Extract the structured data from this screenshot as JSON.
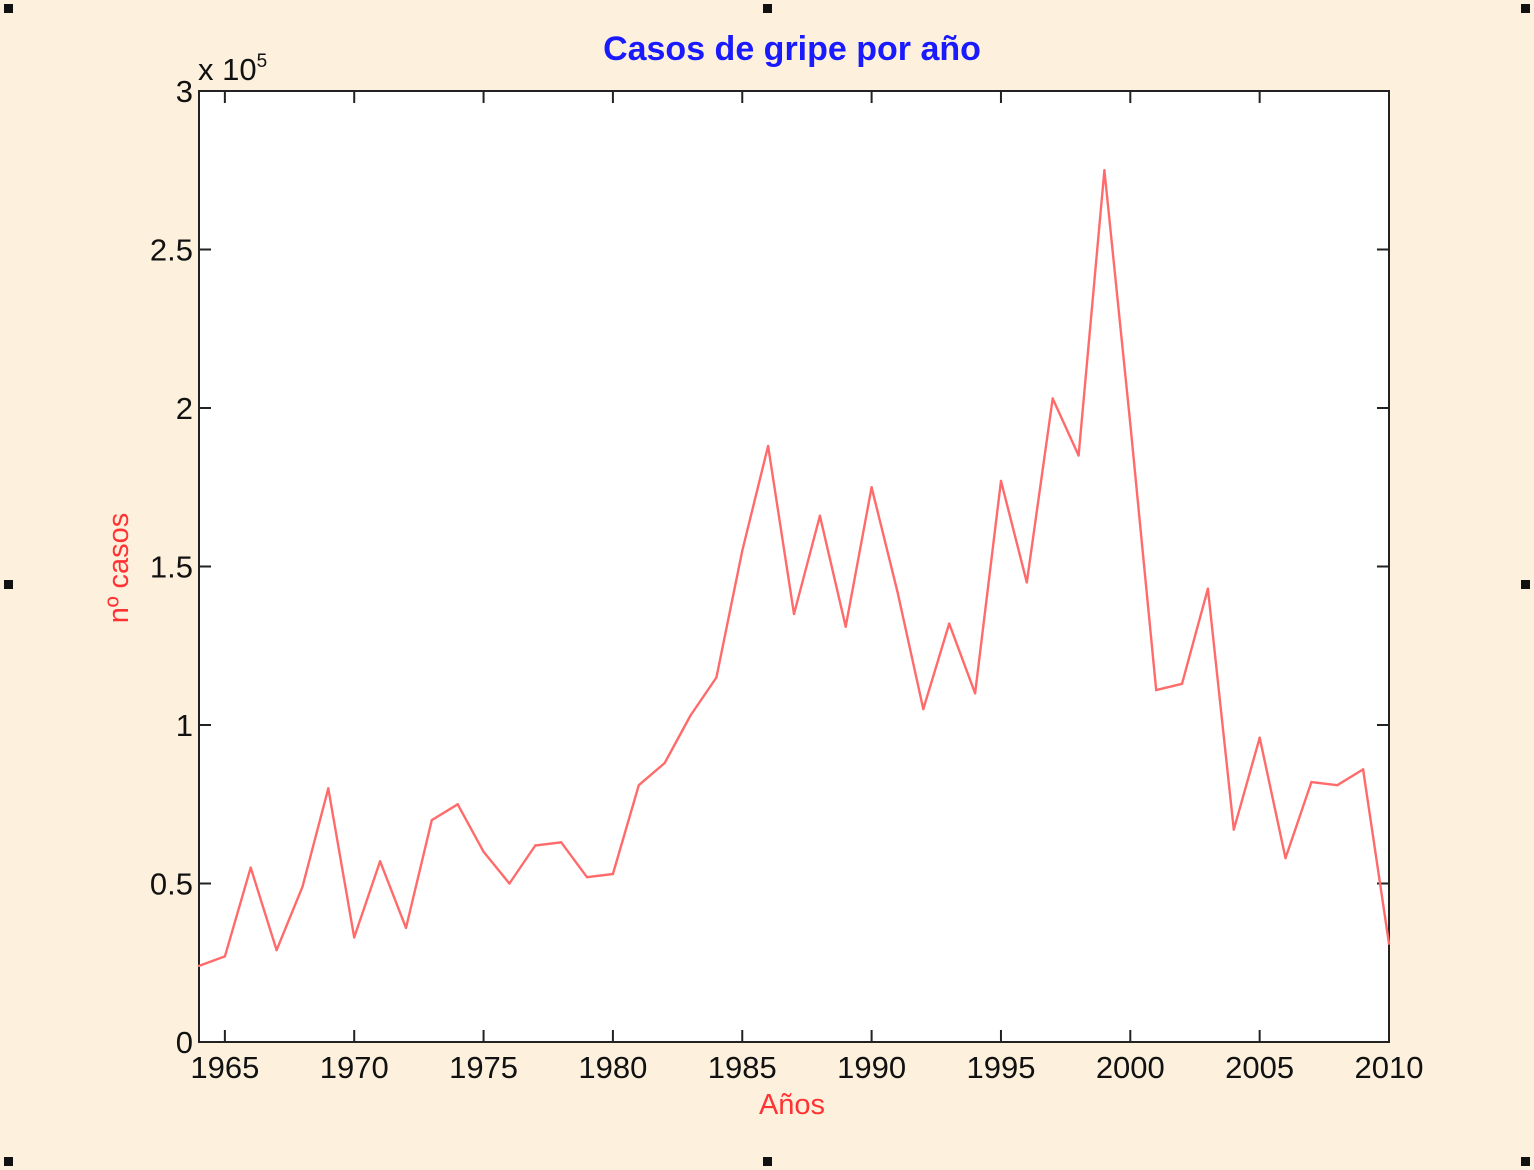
{
  "chart_data": {
    "type": "line",
    "title": "Casos de gripe por año",
    "xlabel": "Años",
    "ylabel": "nº casos",
    "y_multiplier_label": "x 10",
    "y_multiplier_exponent": "5",
    "xlim": [
      1964,
      2010
    ],
    "ylim": [
      0,
      3
    ],
    "x_ticks": [
      "1965",
      "1970",
      "1975",
      "1980",
      "1985",
      "1990",
      "1995",
      "2000",
      "2005",
      "2010"
    ],
    "y_ticks": [
      "0",
      "0.5",
      "1",
      "1.5",
      "2",
      "2.5",
      "3"
    ],
    "grid": false,
    "series": [
      {
        "color": "#ff6b6b",
        "x": [
          1964,
          1965,
          1966,
          1967,
          1968,
          1969,
          1970,
          1971,
          1972,
          1973,
          1974,
          1975,
          1976,
          1977,
          1978,
          1979,
          1980,
          1981,
          1982,
          1983,
          1984,
          1985,
          1986,
          1987,
          1988,
          1989,
          1990,
          1991,
          1992,
          1993,
          1994,
          1995,
          1996,
          1997,
          1998,
          1999,
          2000,
          2001,
          2002,
          2003,
          2004,
          2005,
          2006,
          2007,
          2008,
          2009,
          2010
        ],
        "values": [
          0.24,
          0.27,
          0.55,
          0.29,
          0.49,
          0.8,
          0.33,
          0.57,
          0.36,
          0.7,
          0.75,
          0.6,
          0.5,
          0.62,
          0.63,
          0.52,
          0.53,
          0.81,
          0.88,
          1.03,
          1.15,
          1.55,
          1.88,
          1.35,
          1.66,
          1.31,
          1.75,
          1.42,
          1.05,
          1.32,
          1.1,
          1.77,
          1.45,
          2.03,
          1.85,
          2.75,
          1.95,
          1.11,
          1.13,
          1.43,
          0.67,
          0.96,
          0.58,
          0.82,
          0.81,
          0.86,
          0.31
        ]
      }
    ],
    "colors": {
      "title": "#1a1aff",
      "axis_labels": "#ff3333",
      "line": "#ff6b6b",
      "axes": "#222222",
      "background": "#fdf1dd",
      "plot_background": "#ffffff"
    }
  }
}
